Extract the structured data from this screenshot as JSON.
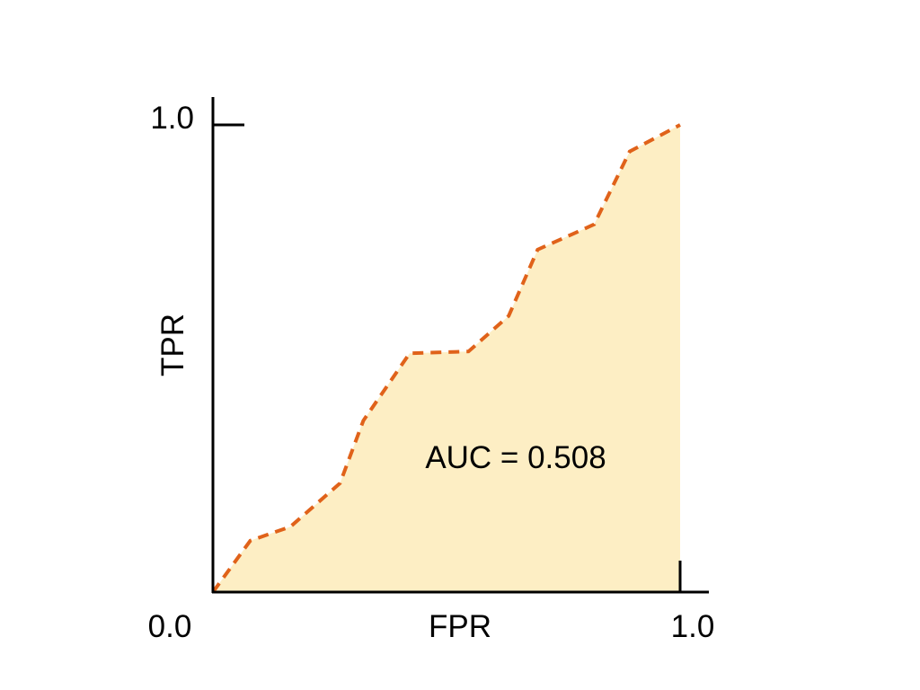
{
  "chart_data": {
    "type": "area",
    "title": "",
    "xlabel": "FPR",
    "ylabel": "TPR",
    "xlim": [
      0,
      1
    ],
    "ylim": [
      0,
      1
    ],
    "x_tick_labels": [
      "0.0",
      "1.0"
    ],
    "y_tick_labels": [
      "1.0"
    ],
    "grid": false,
    "annotation": "AUC = 0.508",
    "line_style": "dashed",
    "colors": {
      "line": "#e0621a",
      "fill": "#fdeec4",
      "axes": "#000000"
    },
    "series": [
      {
        "x": [
          0,
          0.08,
          0.166,
          0.272,
          0.322,
          0.421,
          0.547,
          0.633,
          0.695,
          0.816,
          0.892,
          1.0
        ],
        "y": [
          0,
          0.11,
          0.14,
          0.233,
          0.367,
          0.511,
          0.515,
          0.591,
          0.733,
          0.787,
          0.943,
          1.0
        ]
      }
    ]
  }
}
